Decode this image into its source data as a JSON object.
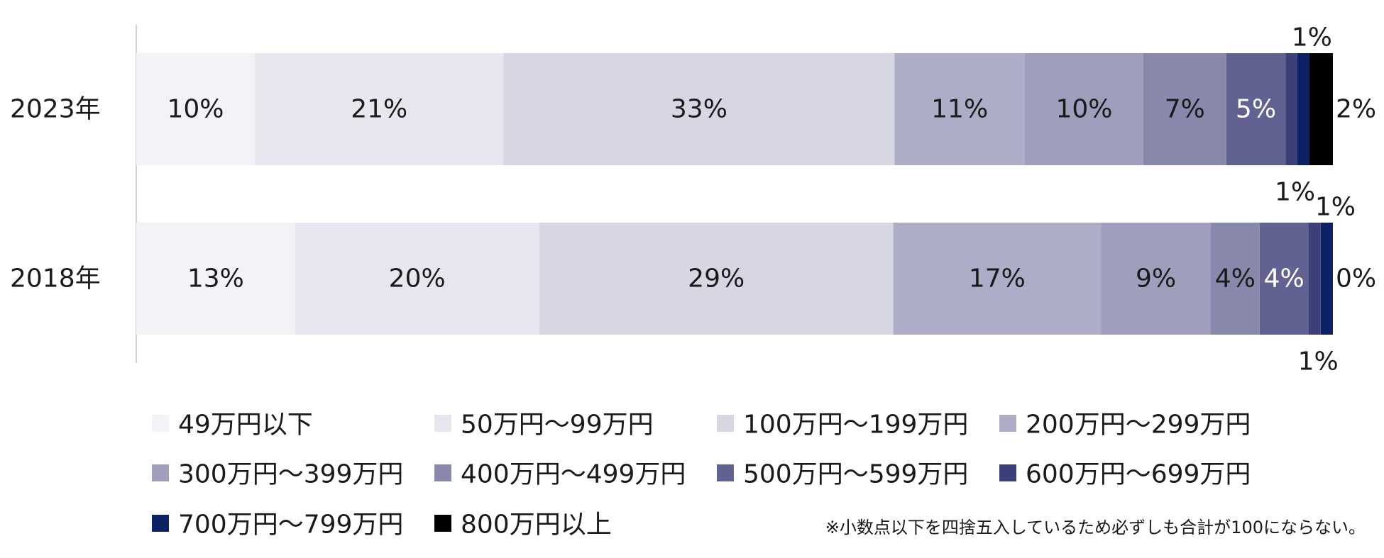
{
  "chart_data": {
    "type": "bar",
    "orientation": "horizontal",
    "stacked": true,
    "percent_stacked": true,
    "categories": [
      "2023年",
      "2018年"
    ],
    "series": [
      {
        "name": "49万円以下",
        "values": [
          10,
          13
        ],
        "labels": [
          "10%",
          "13%"
        ],
        "color": "#f2f2f7",
        "label_color": "#1a1a1a"
      },
      {
        "name": "50万円～99万円",
        "values": [
          21,
          20
        ],
        "labels": [
          "21%",
          "20%"
        ],
        "color": "#e7e7ef",
        "label_color": "#1a1a1a"
      },
      {
        "name": "100万円～199万円",
        "values": [
          33,
          29
        ],
        "labels": [
          "33%",
          "29%"
        ],
        "color": "#d7d7e4",
        "label_color": "#1a1a1a"
      },
      {
        "name": "200万円～299万円",
        "values": [
          11,
          17
        ],
        "labels": [
          "11%",
          "17%"
        ],
        "color": "#adadc8",
        "label_color": "#1a1a1a"
      },
      {
        "name": "300万円～399万円",
        "values": [
          10,
          9
        ],
        "labels": [
          "10%",
          "9%"
        ],
        "color": "#9f9fbd",
        "label_color": "#1a1a1a"
      },
      {
        "name": "400万円～499万円",
        "values": [
          7,
          4
        ],
        "labels": [
          "7%",
          "4%"
        ],
        "color": "#8888ac",
        "label_color": "#1a1a1a"
      },
      {
        "name": "500万円～599万円",
        "values": [
          5,
          4
        ],
        "labels": [
          "5%",
          "4%"
        ],
        "color": "#626292",
        "label_color": "#ffffff"
      },
      {
        "name": "600万円～699万円",
        "values": [
          1,
          1
        ],
        "labels": [
          "1%",
          "1%"
        ],
        "color": "#3b3f7a",
        "label_color": "#1a1a1a",
        "label_outside": true
      },
      {
        "name": "700万円～799万円",
        "values": [
          1,
          1
        ],
        "labels": [
          "1%",
          "1%"
        ],
        "color": "#0c2064",
        "label_color": "#1a1a1a",
        "label_outside": true
      },
      {
        "name": "800万円以上",
        "values": [
          2,
          0
        ],
        "labels": [
          "2%",
          "0%"
        ],
        "color": "#000000",
        "label_color": "#1a1a1a",
        "label_outside": true
      }
    ],
    "xlim": [
      0,
      100
    ],
    "title": "",
    "xlabel": "",
    "ylabel": "",
    "grid": false,
    "legend_position": "bottom",
    "note": "※小数点以下を四捨五入しているため必ずしも合計が100にならない。"
  }
}
